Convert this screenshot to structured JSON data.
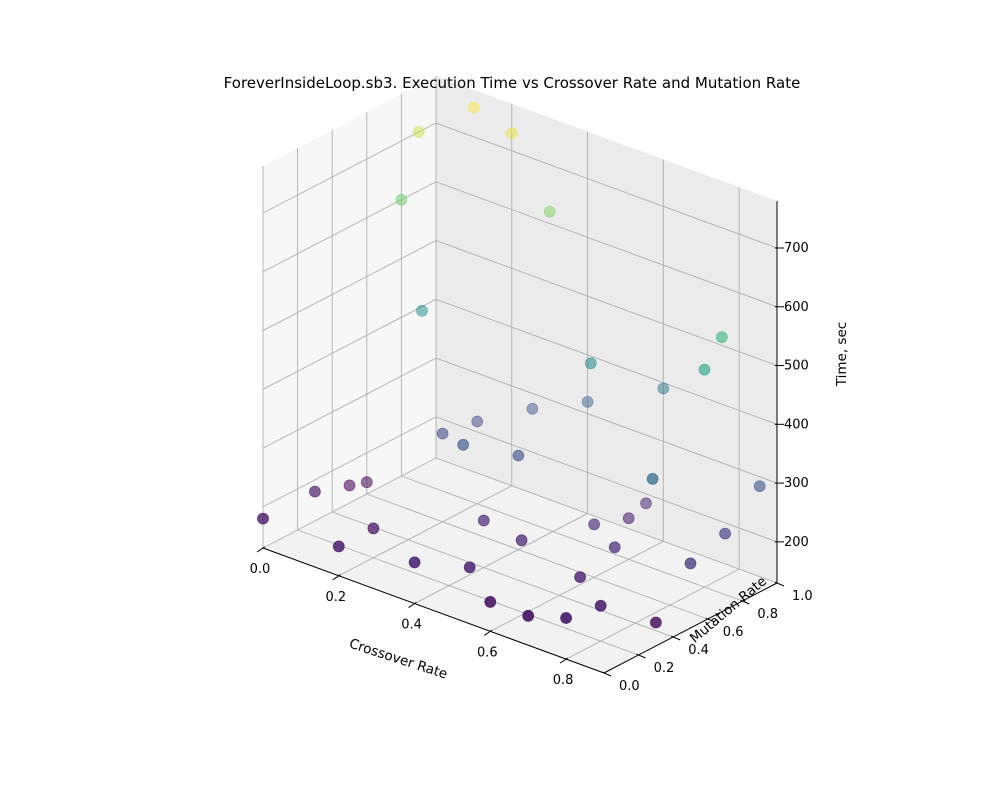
{
  "chart_data": {
    "type": "scatter",
    "title": "ForeverInsideLoop.sb3. Execution Time vs Crossover Rate and Mutation Rate",
    "xlabel": "Crossover Rate",
    "ylabel": "Mutation Rate",
    "zlabel": "Time, sec",
    "xticks": [
      "0.0",
      "0.2",
      "0.4",
      "0.6",
      "0.8"
    ],
    "yticks": [
      "0.0",
      "0.2",
      "0.4",
      "0.6",
      "0.8",
      "1.0"
    ],
    "zticks": [
      "200",
      "300",
      "400",
      "500",
      "600",
      "700"
    ],
    "xlim": [
      0,
      0.9
    ],
    "ylim": [
      0,
      1.0
    ],
    "zlim": [
      130,
      780
    ],
    "grid": true,
    "colormap": "viridis",
    "colors": {
      "viridis": [
        "#440154",
        "#482878",
        "#3e4989",
        "#31688e",
        "#26828e",
        "#1f9e89",
        "#35b779",
        "#6ece58",
        "#b5de2b",
        "#fde725"
      ],
      "pane_back": "#ebebeb",
      "pane_floor": "#f2f2f2",
      "pane_side": "#f7f7f7",
      "grid": "#b0b0b0"
    },
    "points": [
      {
        "x": 0.0,
        "y": 0.0,
        "z": 180
      },
      {
        "x": 0.0,
        "y": 0.3,
        "z": 180
      },
      {
        "x": 0.0,
        "y": 0.5,
        "z": 160
      },
      {
        "x": 0.0,
        "y": 0.6,
        "z": 150
      },
      {
        "x": 0.0,
        "y": 0.8,
        "z": 600
      },
      {
        "x": 0.0,
        "y": 0.9,
        "z": 700
      },
      {
        "x": 0.1,
        "y": 0.7,
        "z": 450
      },
      {
        "x": 0.1,
        "y": 1.0,
        "z": 750
      },
      {
        "x": 0.2,
        "y": 0.0,
        "z": 180
      },
      {
        "x": 0.2,
        "y": 0.2,
        "z": 180
      },
      {
        "x": 0.2,
        "y": 0.6,
        "z": 280
      },
      {
        "x": 0.2,
        "y": 0.8,
        "z": 270
      },
      {
        "x": 0.2,
        "y": 1.0,
        "z": 730
      },
      {
        "x": 0.3,
        "y": 0.5,
        "z": 300
      },
      {
        "x": 0.3,
        "y": 0.9,
        "z": 300
      },
      {
        "x": 0.3,
        "y": 1.0,
        "z": 620
      },
      {
        "x": 0.4,
        "y": 0.0,
        "z": 200
      },
      {
        "x": 0.4,
        "y": 0.4,
        "z": 210
      },
      {
        "x": 0.4,
        "y": 0.6,
        "z": 290
      },
      {
        "x": 0.4,
        "y": 1.0,
        "z": 320
      },
      {
        "x": 0.5,
        "y": 0.1,
        "z": 200
      },
      {
        "x": 0.5,
        "y": 0.4,
        "z": 200
      },
      {
        "x": 0.5,
        "y": 0.8,
        "z": 440
      },
      {
        "x": 0.6,
        "y": 0.0,
        "z": 180
      },
      {
        "x": 0.6,
        "y": 0.6,
        "z": 220
      },
      {
        "x": 0.6,
        "y": 0.8,
        "z": 200
      },
      {
        "x": 0.6,
        "y": 0.9,
        "z": 210
      },
      {
        "x": 0.6,
        "y": 1.0,
        "z": 390
      },
      {
        "x": 0.7,
        "y": 0.0,
        "z": 180
      },
      {
        "x": 0.7,
        "y": 0.3,
        "z": 200
      },
      {
        "x": 0.7,
        "y": 0.5,
        "z": 220
      },
      {
        "x": 0.8,
        "y": 0.0,
        "z": 200
      },
      {
        "x": 0.8,
        "y": 0.2,
        "z": 190
      },
      {
        "x": 0.8,
        "y": 0.5,
        "z": 360
      },
      {
        "x": 0.8,
        "y": 0.8,
        "z": 500
      },
      {
        "x": 0.8,
        "y": 0.9,
        "z": 540
      },
      {
        "x": 0.9,
        "y": 0.3,
        "z": 170
      },
      {
        "x": 0.9,
        "y": 0.5,
        "z": 240
      },
      {
        "x": 0.9,
        "y": 0.7,
        "z": 260
      },
      {
        "x": 0.9,
        "y": 0.9,
        "z": 310
      }
    ]
  }
}
